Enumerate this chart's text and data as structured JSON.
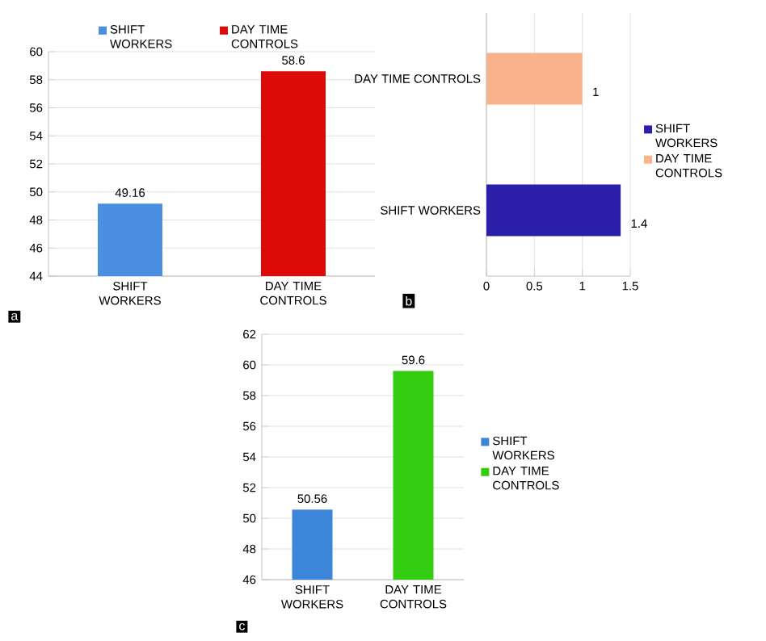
{
  "chart_data": [
    {
      "type": "bar",
      "categories": [
        "SHIFT WORKERS",
        "DAY TIME CONTROLS"
      ],
      "series": [
        {
          "name": "SHIFT WORKERS",
          "color": "#4a8fe0",
          "values": [
            49.16,
            null
          ]
        },
        {
          "name": "DAY TIME CONTROLS",
          "color": "#dd0a0a",
          "values": [
            null,
            58.6
          ]
        }
      ],
      "ylim": [
        44,
        60
      ],
      "yticks": [
        44,
        46,
        48,
        50,
        52,
        54,
        56,
        58,
        60
      ],
      "grid": "y",
      "legend": "top",
      "data_labels": true,
      "annotations": [
        "a"
      ]
    },
    {
      "type": "bar",
      "orientation": "horizontal",
      "categories": [
        "DAY TIME CONTROLS",
        "SHIFT WORKERS"
      ],
      "series": [
        {
          "name": "SHIFT WORKERS",
          "color": "#2a1fa8",
          "values": [
            null,
            1.4
          ]
        },
        {
          "name": "DAY TIME CONTROLS",
          "color": "#f8b38c",
          "values": [
            1,
            null
          ]
        }
      ],
      "xlim": [
        0,
        1.5
      ],
      "xticks": [
        0,
        0.5,
        1,
        1.5
      ],
      "grid": "x",
      "legend": "right",
      "data_labels": true,
      "annotations": [
        "b"
      ]
    },
    {
      "type": "bar",
      "categories": [
        "SHIFT WORKERS",
        "DAY TIME CONTROLS"
      ],
      "series": [
        {
          "name": "SHIFT WORKERS",
          "color": "#3d85d8",
          "values": [
            50.56,
            null
          ]
        },
        {
          "name": "DAY TIME CONTROLS",
          "color": "#33cc11",
          "values": [
            null,
            59.6
          ]
        }
      ],
      "ylim": [
        46,
        62
      ],
      "yticks": [
        46,
        48,
        50,
        52,
        54,
        56,
        58,
        60,
        62
      ],
      "grid": "y",
      "legend": "right",
      "data_labels": true,
      "annotations": [
        "c"
      ]
    }
  ]
}
